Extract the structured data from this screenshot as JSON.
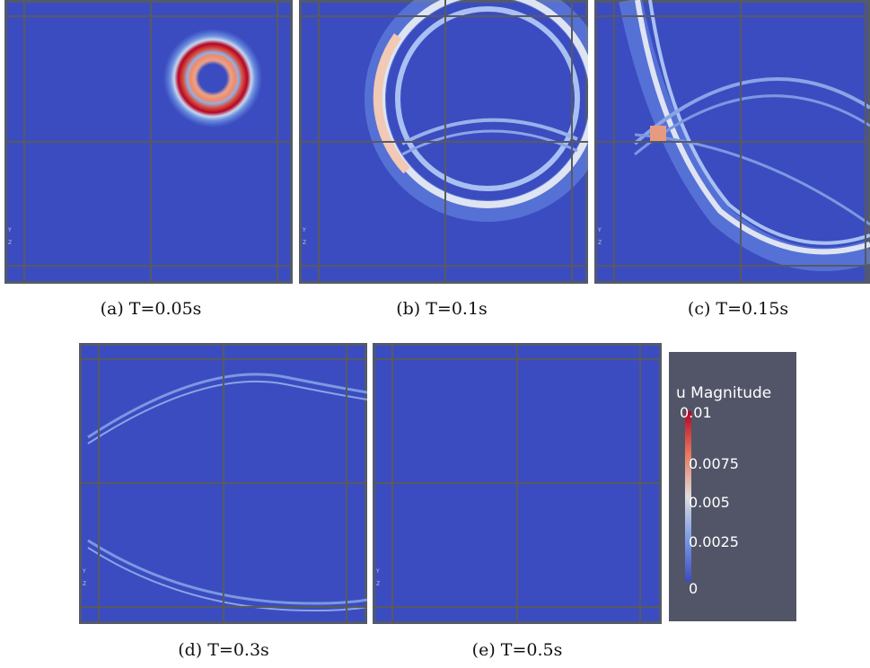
{
  "figure": {
    "panels": [
      {
        "id": "a",
        "caption": "(a) T=0.05s"
      },
      {
        "id": "b",
        "caption": "(b) T=0.1s"
      },
      {
        "id": "c",
        "caption": "(c) T=0.15s"
      },
      {
        "id": "d",
        "caption": "(d) T=0.3s"
      },
      {
        "id": "e",
        "caption": "(e) T=0.5s"
      }
    ],
    "axis_glyphs": {
      "y": "Y",
      "z": "Z"
    }
  },
  "colorbar": {
    "title": "u Magnitude",
    "min": 0,
    "max": 0.01,
    "labels": [
      "0.01",
      "0.0075",
      "0.005",
      "0.0025",
      "0"
    ],
    "colors": {
      "low": "#3b4cc0",
      "mid": "#dddddd",
      "high": "#b40426",
      "background": "#525567"
    }
  }
}
